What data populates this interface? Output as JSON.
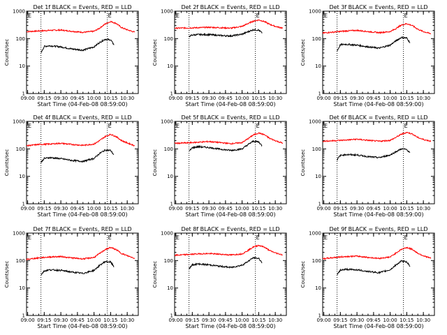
{
  "chart_data": {
    "type": "line",
    "grid": false,
    "layout": "3x3",
    "colors": {
      "events": "#000000",
      "lld": "#ff0000"
    },
    "ylim": [
      1,
      1000
    ],
    "yscale": "log",
    "yticks": [
      "1",
      "10",
      "100",
      "1000"
    ],
    "xlim": [
      "08:59:00",
      "10:40:00"
    ],
    "xticks": [
      "09:00",
      "09:15",
      "09:30",
      "09:45",
      "10:00",
      "10:15",
      "10:30"
    ],
    "xlabel": "Start Time (04-Feb-08 08:59:00)",
    "ylabel": "Counts/sec",
    "flag_labels": [
      "E",
      "E"
    ],
    "interval_marks": [
      "09:12",
      "10:12"
    ],
    "panels": [
      {
        "title": "Det 1f BLACK = Events, RED = LLD",
        "series": [
          {
            "x": [
              "08:59",
              "09:10",
              "09:20",
              "09:30",
              "09:40",
              "09:50",
              "10:00",
              "10:05",
              "10:10",
              "10:15",
              "10:20",
              "10:25",
              "10:30",
              "10:37"
            ],
            "values": [
              180,
              190,
              200,
              205,
              185,
              170,
              185,
              240,
              340,
              420,
              360,
              250,
              210,
              170
            ]
          },
          {
            "x": [
              "09:12",
              "09:15",
              "09:20",
              "09:30",
              "09:40",
              "09:50",
              "10:00",
              "10:05",
              "10:10",
              "10:15",
              "10:18"
            ],
            "values": [
              30,
              52,
              55,
              50,
              42,
              38,
              50,
              72,
              95,
              90,
              60
            ]
          }
        ]
      },
      {
        "title": "Det 2f BLACK = Events, RED = LLD",
        "series": [
          {
            "x": [
              "08:59",
              "09:10",
              "09:20",
              "09:30",
              "09:40",
              "09:50",
              "10:00",
              "10:05",
              "10:10",
              "10:15",
              "10:20",
              "10:25",
              "10:30",
              "10:37"
            ],
            "values": [
              240,
              245,
              250,
              258,
              250,
              240,
              280,
              350,
              430,
              480,
              420,
              330,
              280,
              240
            ]
          },
          {
            "x": [
              "09:12",
              "09:15",
              "09:20",
              "09:30",
              "09:40",
              "09:50",
              "10:00",
              "10:05",
              "10:10",
              "10:15",
              "10:18"
            ],
            "values": [
              120,
              135,
              140,
              140,
              130,
              125,
              145,
              175,
              210,
              205,
              160
            ]
          }
        ]
      },
      {
        "title": "Det 3f BLACK = Events, RED = LLD",
        "series": [
          {
            "x": [
              "08:59",
              "09:10",
              "09:20",
              "09:30",
              "09:40",
              "09:50",
              "10:00",
              "10:05",
              "10:10",
              "10:15",
              "10:20",
              "10:25",
              "10:30",
              "10:37"
            ],
            "values": [
              160,
              175,
              190,
              200,
              180,
              165,
              180,
              230,
              310,
              350,
              300,
              220,
              180,
              150
            ]
          },
          {
            "x": [
              "09:12",
              "09:15",
              "09:20",
              "09:30",
              "09:40",
              "09:50",
              "10:00",
              "10:05",
              "10:10",
              "10:15",
              "10:18"
            ],
            "values": [
              35,
              60,
              62,
              58,
              50,
              45,
              58,
              82,
              110,
              105,
              70
            ]
          }
        ]
      },
      {
        "title": "Det 4f BLACK = Events, RED = LLD",
        "series": [
          {
            "x": [
              "08:59",
              "09:10",
              "09:20",
              "09:30",
              "09:40",
              "09:50",
              "10:00",
              "10:05",
              "10:10",
              "10:15",
              "10:20",
              "10:25",
              "10:30",
              "10:37"
            ],
            "values": [
              130,
              145,
              150,
              160,
              145,
              135,
              150,
              200,
              280,
              340,
              280,
              200,
              165,
              130
            ]
          },
          {
            "x": [
              "09:12",
              "09:15",
              "09:20",
              "09:30",
              "09:40",
              "09:50",
              "10:00",
              "10:05",
              "10:10",
              "10:15",
              "10:18"
            ],
            "values": [
              32,
              45,
              48,
              44,
              38,
              35,
              45,
              68,
              90,
              88,
              60
            ]
          }
        ]
      },
      {
        "title": "Det 5f BLACK = Events, RED = LLD",
        "series": [
          {
            "x": [
              "08:59",
              "09:10",
              "09:20",
              "09:30",
              "09:40",
              "09:50",
              "10:00",
              "10:05",
              "10:10",
              "10:15",
              "10:20",
              "10:25",
              "10:30",
              "10:37"
            ],
            "values": [
              160,
              165,
              175,
              185,
              170,
              155,
              170,
              230,
              320,
              380,
              330,
              240,
              200,
              160
            ]
          },
          {
            "x": [
              "09:12",
              "09:15",
              "09:20",
              "09:30",
              "09:40",
              "09:50",
              "10:00",
              "10:05",
              "10:10",
              "10:15",
              "10:18"
            ],
            "values": [
              80,
              110,
              120,
              112,
              98,
              88,
              100,
              140,
              190,
              180,
              130
            ]
          }
        ]
      },
      {
        "title": "Det 6f BLACK = Events, RED = LLD",
        "series": [
          {
            "x": [
              "08:59",
              "09:10",
              "09:20",
              "09:30",
              "09:40",
              "09:50",
              "10:00",
              "10:05",
              "10:10",
              "10:15",
              "10:20",
              "10:25",
              "10:30",
              "10:37"
            ],
            "values": [
              190,
              200,
              210,
              225,
              205,
              190,
              205,
              260,
              340,
              400,
              350,
              260,
              220,
              190
            ]
          },
          {
            "x": [
              "09:12",
              "09:15",
              "09:20",
              "09:30",
              "09:40",
              "09:50",
              "10:00",
              "10:05",
              "10:10",
              "10:15",
              "10:18"
            ],
            "values": [
              40,
              58,
              62,
              60,
              52,
              48,
              60,
              78,
              100,
              95,
              70
            ]
          }
        ]
      },
      {
        "title": "Det 7f BLACK = Events, RED = LLD",
        "series": [
          {
            "x": [
              "08:59",
              "09:10",
              "09:20",
              "09:30",
              "09:40",
              "09:50",
              "10:00",
              "10:05",
              "10:10",
              "10:15",
              "10:20",
              "10:25",
              "10:30",
              "10:37"
            ],
            "values": [
              110,
              125,
              135,
              140,
              125,
              115,
              130,
              180,
              250,
              300,
              250,
              180,
              150,
              120
            ]
          },
          {
            "x": [
              "09:12",
              "09:15",
              "09:20",
              "09:30",
              "09:40",
              "09:50",
              "10:00",
              "10:05",
              "10:10",
              "10:15",
              "10:18"
            ],
            "values": [
              30,
              42,
              46,
              44,
              38,
              34,
              44,
              66,
              92,
              88,
              60
            ]
          }
        ]
      },
      {
        "title": "Det 8f BLACK = Events, RED = LLD",
        "series": [
          {
            "x": [
              "08:59",
              "09:10",
              "09:20",
              "09:30",
              "09:40",
              "09:50",
              "10:00",
              "10:05",
              "10:10",
              "10:15",
              "10:20",
              "10:25",
              "10:30",
              "10:37"
            ],
            "values": [
              155,
              165,
              175,
              180,
              170,
              160,
              175,
              230,
              310,
              360,
              310,
              230,
              190,
              160
            ]
          },
          {
            "x": [
              "09:12",
              "09:15",
              "09:20",
              "09:30",
              "09:40",
              "09:50",
              "10:00",
              "10:05",
              "10:10",
              "10:15",
              "10:18"
            ],
            "values": [
              50,
              70,
              75,
              70,
              62,
              56,
              68,
              92,
              125,
              120,
              85
            ]
          }
        ]
      },
      {
        "title": "Det 9f BLACK = Events, RED = LLD",
        "series": [
          {
            "x": [
              "08:59",
              "09:10",
              "09:20",
              "09:30",
              "09:40",
              "09:50",
              "10:00",
              "10:05",
              "10:10",
              "10:15",
              "10:20",
              "10:25",
              "10:30",
              "10:37"
            ],
            "values": [
              115,
              130,
              140,
              145,
              130,
              120,
              135,
              185,
              255,
              300,
              255,
              185,
              150,
              120
            ]
          },
          {
            "x": [
              "09:12",
              "09:15",
              "09:20",
              "09:30",
              "09:40",
              "09:50",
              "10:00",
              "10:05",
              "10:10",
              "10:15",
              "10:18"
            ],
            "values": [
              30,
              45,
              48,
              46,
              40,
              36,
              46,
              68,
              95,
              90,
              62
            ]
          }
        ]
      }
    ]
  }
}
